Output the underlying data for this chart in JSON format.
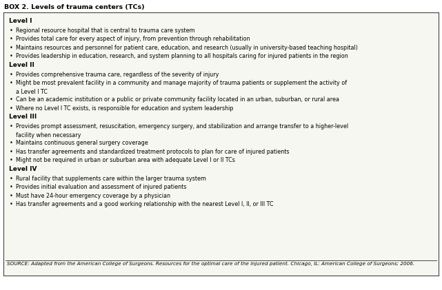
{
  "title": "BOX 2. Levels of trauma centers (TCs)",
  "background_color": "#ffffff",
  "box_background": "#f7f7f2",
  "border_color": "#444444",
  "title_color": "#000000",
  "figsize": [
    6.41,
    4.21
  ],
  "dpi": 100,
  "content": [
    {
      "type": "heading",
      "text": "Level I"
    },
    {
      "type": "bullet",
      "text": "Regional resource hospital that is central to trauma care system"
    },
    {
      "type": "bullet",
      "text": "Provides total care for every aspect of injury, from prevention through rehabilitation"
    },
    {
      "type": "bullet",
      "text": "Maintains resources and personnel for patient care, education, and research (usually in university-based teaching hospital)"
    },
    {
      "type": "bullet",
      "text": "Provides leadership in education, research, and system planning to all hospitals caring for injured patients in the region"
    },
    {
      "type": "heading",
      "text": "Level II"
    },
    {
      "type": "bullet",
      "text": "Provides comprehensive trauma care, regardless of the severity of injury"
    },
    {
      "type": "bullet",
      "text": "Might be most prevalent facility in a community and manage majority of trauma patients or supplement the activity of\na Level I TC"
    },
    {
      "type": "bullet",
      "text": "Can be an academic institution or a public or private community facility located in an urban, suburban, or rural area"
    },
    {
      "type": "bullet",
      "text": "Where no Level I TC exists, is responsible for education and system leadership"
    },
    {
      "type": "heading",
      "text": "Level III"
    },
    {
      "type": "bullet",
      "text": "Provides prompt assessment, resuscitation, emergency surgery, and stabilization and arrange transfer to a higher-level\nfacility when necessary"
    },
    {
      "type": "bullet",
      "text": "Maintains continuous general surgery coverage"
    },
    {
      "type": "bullet",
      "text": "Has transfer agreements and standardized treatment protocols to plan for care of injured patients"
    },
    {
      "type": "bullet",
      "text": "Might not be required in urban or suburban area with adequate Level I or II TCs"
    },
    {
      "type": "heading",
      "text": "Level IV"
    },
    {
      "type": "bullet",
      "text": "Rural facility that supplements care within the larger trauma system"
    },
    {
      "type": "bullet",
      "text": "Provides initial evaluation and assessment of injured patients"
    },
    {
      "type": "bullet",
      "text": "Must have 24-hour emergency coverage by a physician"
    },
    {
      "type": "bullet",
      "text": "Has transfer agreements and a good working relationship with the nearest Level I, II, or III TC"
    }
  ],
  "source_text": "SOURCE: Adapted from the American College of Surgeons. Resources for the optimal care of the injured patient. Chicago, IL: American College of Surgeons; 2006.",
  "heading_fontsize": 6.5,
  "bullet_fontsize": 5.8,
  "title_fontsize": 6.8,
  "source_fontsize": 5.2
}
